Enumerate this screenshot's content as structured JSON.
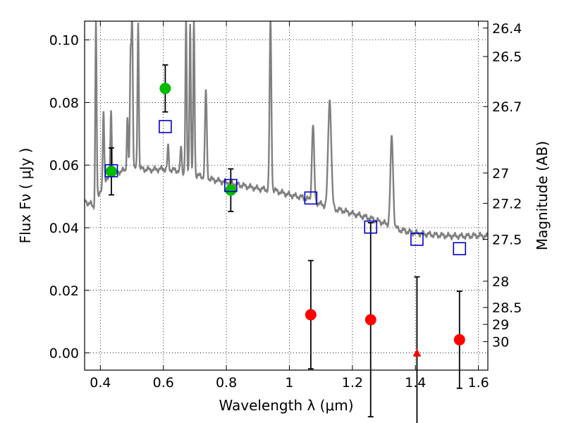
{
  "chart_data": {
    "type": "scatter",
    "xlabel": "Wavelength  λ (μm)",
    "ylabel": "Flux  Fν  ( μJy )",
    "ylabel_right": "Magnitude (AB)",
    "xlim": [
      0.35,
      1.63
    ],
    "ylim": [
      -0.0055,
      0.106
    ],
    "grid": true,
    "x_ticks": [
      0.4,
      0.6,
      0.8,
      1.0,
      1.2,
      1.4,
      1.6
    ],
    "x_tick_labels": [
      "0.4",
      "0.6",
      "0.8",
      "1",
      "1.2",
      "1.4",
      "1.6"
    ],
    "y_ticks": [
      0.0,
      0.02,
      0.04,
      0.06,
      0.08,
      0.1
    ],
    "y_tick_labels": [
      "0.00",
      "0.02",
      "0.04",
      "0.06",
      "0.08",
      "0.10"
    ],
    "mag_ticks": [
      {
        "flux": 0.1038,
        "label": "26.4"
      },
      {
        "flux": 0.0947,
        "label": "26.5"
      },
      {
        "flux": 0.0787,
        "label": "26.7"
      },
      {
        "flux": 0.0575,
        "label": "27"
      },
      {
        "flux": 0.0478,
        "label": "27.2"
      },
      {
        "flux": 0.0363,
        "label": "27.5"
      },
      {
        "flux": 0.0229,
        "label": "28"
      },
      {
        "flux": 0.0145,
        "label": "28.5"
      },
      {
        "flux": 0.0091,
        "label": "29"
      },
      {
        "flux": 0.0036,
        "label": "30"
      }
    ],
    "series": [
      {
        "marker": "circle",
        "color": "#00bb00",
        "points": [
          {
            "x": 0.435,
            "y": 0.058,
            "yerr": 0.0075
          },
          {
            "x": 0.606,
            "y": 0.0845,
            "yerr": 0.0075
          },
          {
            "x": 0.814,
            "y": 0.052,
            "yerr": 0.0068
          }
        ]
      },
      {
        "marker": "circle",
        "color": "#ff0000",
        "points": [
          {
            "x": 1.068,
            "y": 0.0122,
            "yerr": 0.0173
          },
          {
            "x": 1.258,
            "y": 0.0106,
            "yerr": 0.031
          },
          {
            "x": 1.54,
            "y": 0.0042,
            "yerr": 0.0155
          }
        ]
      },
      {
        "marker": "triangle",
        "color": "#ff0000",
        "points": [
          {
            "x": 1.405,
            "y": 0.0,
            "yerr": 0.0243
          }
        ]
      },
      {
        "marker": "square",
        "color": "#0000cc",
        "points": [
          {
            "x": 0.435,
            "y": 0.0582
          },
          {
            "x": 0.606,
            "y": 0.0723
          },
          {
            "x": 0.814,
            "y": 0.0535
          },
          {
            "x": 1.068,
            "y": 0.0495
          },
          {
            "x": 1.258,
            "y": 0.0402
          },
          {
            "x": 1.405,
            "y": 0.0363
          },
          {
            "x": 1.54,
            "y": 0.0333
          }
        ]
      }
    ],
    "model_spectrum": {
      "color": "#808080",
      "continuum": [
        [
          0.35,
          0.0485
        ],
        [
          0.37,
          0.0475
        ],
        [
          0.385,
          0.046
        ],
        [
          0.39,
          0.049
        ],
        [
          0.4,
          0.052
        ],
        [
          0.42,
          0.056
        ],
        [
          0.45,
          0.0575
        ],
        [
          0.48,
          0.0585
        ],
        [
          0.5,
          0.059
        ],
        [
          0.53,
          0.0588
        ],
        [
          0.56,
          0.0585
        ],
        [
          0.6,
          0.0588
        ],
        [
          0.65,
          0.0582
        ],
        [
          0.7,
          0.057
        ],
        [
          0.75,
          0.0555
        ],
        [
          0.8,
          0.0545
        ],
        [
          0.85,
          0.0535
        ],
        [
          0.9,
          0.0525
        ],
        [
          0.95,
          0.052
        ],
        [
          1.0,
          0.0505
        ],
        [
          1.05,
          0.0495
        ],
        [
          1.1,
          0.0475
        ],
        [
          1.15,
          0.0458
        ],
        [
          1.17,
          0.0455
        ],
        [
          1.2,
          0.0445
        ],
        [
          1.25,
          0.0432
        ],
        [
          1.3,
          0.0415
        ],
        [
          1.32,
          0.0408
        ],
        [
          1.35,
          0.0393
        ],
        [
          1.4,
          0.0383
        ],
        [
          1.45,
          0.0378
        ],
        [
          1.5,
          0.0374
        ],
        [
          1.55,
          0.0373
        ],
        [
          1.6,
          0.0375
        ],
        [
          1.63,
          0.0372
        ]
      ],
      "lines": [
        {
          "x": 0.386,
          "y": 0.106,
          "w": 0.003
        },
        {
          "x": 0.41,
          "y": 0.077,
          "w": 0.003
        },
        {
          "x": 0.434,
          "y": 0.077,
          "w": 0.003
        },
        {
          "x": 0.486,
          "y": 0.075,
          "w": 0.003
        },
        {
          "x": 0.496,
          "y": 0.095,
          "w": 0.003
        },
        {
          "x": 0.501,
          "y": 0.106,
          "w": 0.003
        },
        {
          "x": 0.52,
          "y": 0.106,
          "w": 0.003
        },
        {
          "x": 0.615,
          "y": 0.066,
          "w": 0.003
        },
        {
          "x": 0.656,
          "y": 0.066,
          "w": 0.003
        },
        {
          "x": 0.672,
          "y": 0.106,
          "w": 0.003
        },
        {
          "x": 0.685,
          "y": 0.106,
          "w": 0.003
        },
        {
          "x": 0.697,
          "y": 0.106,
          "w": 0.003
        },
        {
          "x": 0.735,
          "y": 0.084,
          "w": 0.004
        },
        {
          "x": 0.94,
          "y": 0.106,
          "w": 0.004
        },
        {
          "x": 1.075,
          "y": 0.073,
          "w": 0.005
        },
        {
          "x": 1.128,
          "y": 0.081,
          "w": 0.007
        },
        {
          "x": 1.325,
          "y": 0.069,
          "w": 0.006
        }
      ]
    }
  }
}
